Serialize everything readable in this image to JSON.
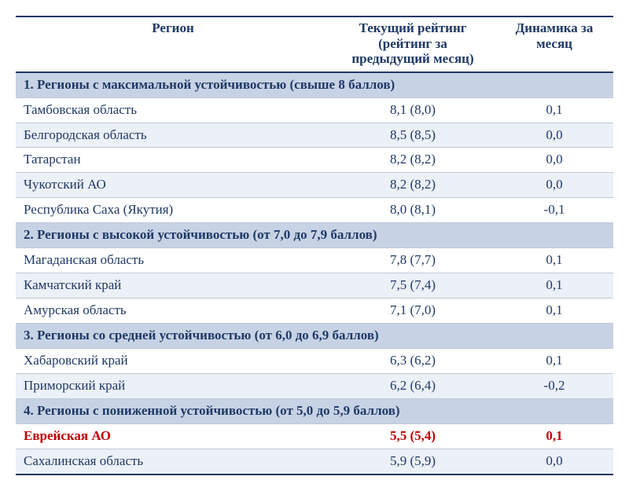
{
  "table": {
    "headers": {
      "region": "Регион",
      "rating": "Текущий рейтинг (рейтинг за предыдущий месяц)",
      "dynamics": "Динамика за месяц"
    },
    "column_widths": {
      "region": 400,
      "rating": 210,
      "dynamics": 150
    },
    "colors": {
      "text": "#1f3966",
      "section_bg": "#c7d3e5",
      "alt_row_bg": "#ecf0f7",
      "border": "#1f3966",
      "row_border": "#bfc9d9",
      "highlight_text": "#c00000"
    },
    "fontsize": 17,
    "sections": [
      {
        "title": "1. Регионы с максимальной устойчивостью (свыше 8 баллов)",
        "rows": [
          {
            "region": "Тамбовская область",
            "rating": "8,1 (8,0)",
            "dynamics": "0,1",
            "alt": false
          },
          {
            "region": "Белгородская область",
            "rating": "8,5 (8,5)",
            "dynamics": "0,0",
            "alt": true
          },
          {
            "region": "Татарстан",
            "rating": "8,2 (8,2)",
            "dynamics": "0,0",
            "alt": false
          },
          {
            "region": "Чукотский АО",
            "rating": "8,2 (8,2)",
            "dynamics": "0,0",
            "alt": true
          },
          {
            "region": "Республика Саха (Якутия)",
            "rating": "8,0 (8,1)",
            "dynamics": "-0,1",
            "alt": false
          }
        ]
      },
      {
        "title": "2. Регионы с высокой устойчивостью (от 7,0 до 7,9 баллов)",
        "rows": [
          {
            "region": "Магаданская область",
            "rating": "7,8 (7,7)",
            "dynamics": "0,1",
            "alt": false
          },
          {
            "region": "Камчатский край",
            "rating": "7,5 (7,4)",
            "dynamics": "0,1",
            "alt": true
          },
          {
            "region": "Амурская область",
            "rating": "7,1 (7,0)",
            "dynamics": "0,1",
            "alt": false
          }
        ]
      },
      {
        "title": "3. Регионы со средней устойчивостью (от 6,0 до 6,9 баллов)",
        "rows": [
          {
            "region": "Хабаровский край",
            "rating": "6,3 (6,2)",
            "dynamics": "0,1",
            "alt": false
          },
          {
            "region": "Приморский край",
            "rating": "6,2 (6,4)",
            "dynamics": "-0,2",
            "alt": true
          }
        ]
      },
      {
        "title": "4. Регионы с пониженной устойчивостью (от 5,0 до 5,9 баллов)",
        "rows": [
          {
            "region": "Еврейская АО",
            "rating": "5,5 (5,4)",
            "dynamics": "0,1",
            "alt": false,
            "highlight": true
          },
          {
            "region": "Сахалинская область",
            "rating": "5,9 (5,9)",
            "dynamics": "0,0",
            "alt": true
          }
        ]
      }
    ]
  }
}
